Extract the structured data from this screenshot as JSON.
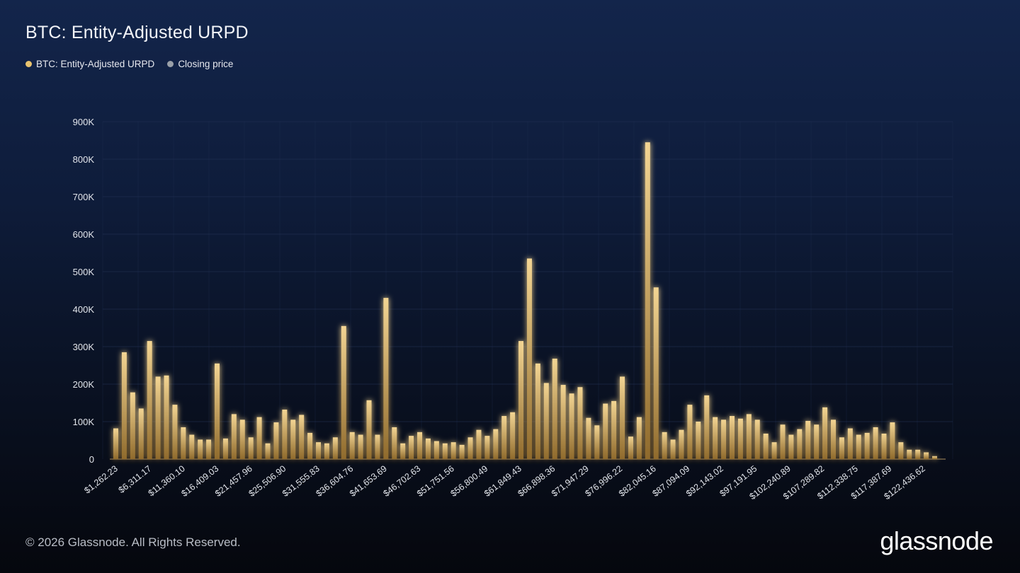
{
  "header": {
    "title": "BTC: Entity-Adjusted URPD"
  },
  "legend": [
    {
      "label": "BTC: Entity-Adjusted URPD",
      "color": "#e9c36f"
    },
    {
      "label": "Closing price",
      "color": "#9aa0a8"
    }
  ],
  "footer": {
    "copyright": "© 2026 Glassnode. All Rights Reserved.",
    "brand": "glassnode"
  },
  "colors": {
    "bar_top": "#f3d593",
    "bar_bottom": "#8f6a2c",
    "grid": "#233255",
    "axis_text": "#e3e6ec"
  },
  "chart_data": {
    "type": "bar",
    "title": "BTC: Entity-Adjusted URPD",
    "series_name": "BTC: Entity-Adjusted URPD",
    "xlabel": "",
    "ylabel": "",
    "ylim": [
      0,
      900000
    ],
    "y_ticks": [
      0,
      100000,
      200000,
      300000,
      400000,
      500000,
      600000,
      700000,
      800000,
      900000
    ],
    "y_tick_labels": [
      "0",
      "100K",
      "200K",
      "300K",
      "400K",
      "500K",
      "600K",
      "700K",
      "800K",
      "900K"
    ],
    "x_tick_labels": [
      "$1,262.23",
      "$6,311.17",
      "$11,360.10",
      "$16,409.03",
      "$21,457.96",
      "$25,506.90",
      "$31,555.83",
      "$36,604.76",
      "$41,653.69",
      "$46,702.63",
      "$51,751.56",
      "$56,800.49",
      "$61,849.43",
      "$66,898.36",
      "$71,947.29",
      "$76,996.22",
      "$82,045.16",
      "$87,094.09",
      "$92,143.02",
      "$97,191.95",
      "$102,240.89",
      "$107,289.82",
      "$112,338.75",
      "$117,387.69",
      "$122,436.62"
    ],
    "grid": true,
    "values": [
      82000,
      285000,
      178000,
      135000,
      315000,
      220000,
      223000,
      145000,
      85000,
      65000,
      52000,
      52000,
      255000,
      55000,
      120000,
      105000,
      58000,
      112000,
      42000,
      98000,
      132000,
      105000,
      118000,
      70000,
      45000,
      42000,
      58000,
      355000,
      72000,
      65000,
      157000,
      65000,
      430000,
      85000,
      42000,
      62000,
      72000,
      55000,
      48000,
      42000,
      45000,
      38000,
      58000,
      78000,
      62000,
      80000,
      115000,
      125000,
      315000,
      535000,
      255000,
      203000,
      268000,
      198000,
      175000,
      192000,
      110000,
      90000,
      148000,
      155000,
      220000,
      60000,
      112000,
      845000,
      458000,
      72000,
      52000,
      78000,
      145000,
      100000,
      170000,
      112000,
      105000,
      115000,
      108000,
      120000,
      105000,
      68000,
      45000,
      92000,
      65000,
      80000,
      102000,
      92000,
      138000,
      105000,
      58000,
      82000,
      65000,
      70000,
      85000,
      68000,
      98000,
      45000,
      25000,
      25000,
      18000,
      8000
    ]
  }
}
